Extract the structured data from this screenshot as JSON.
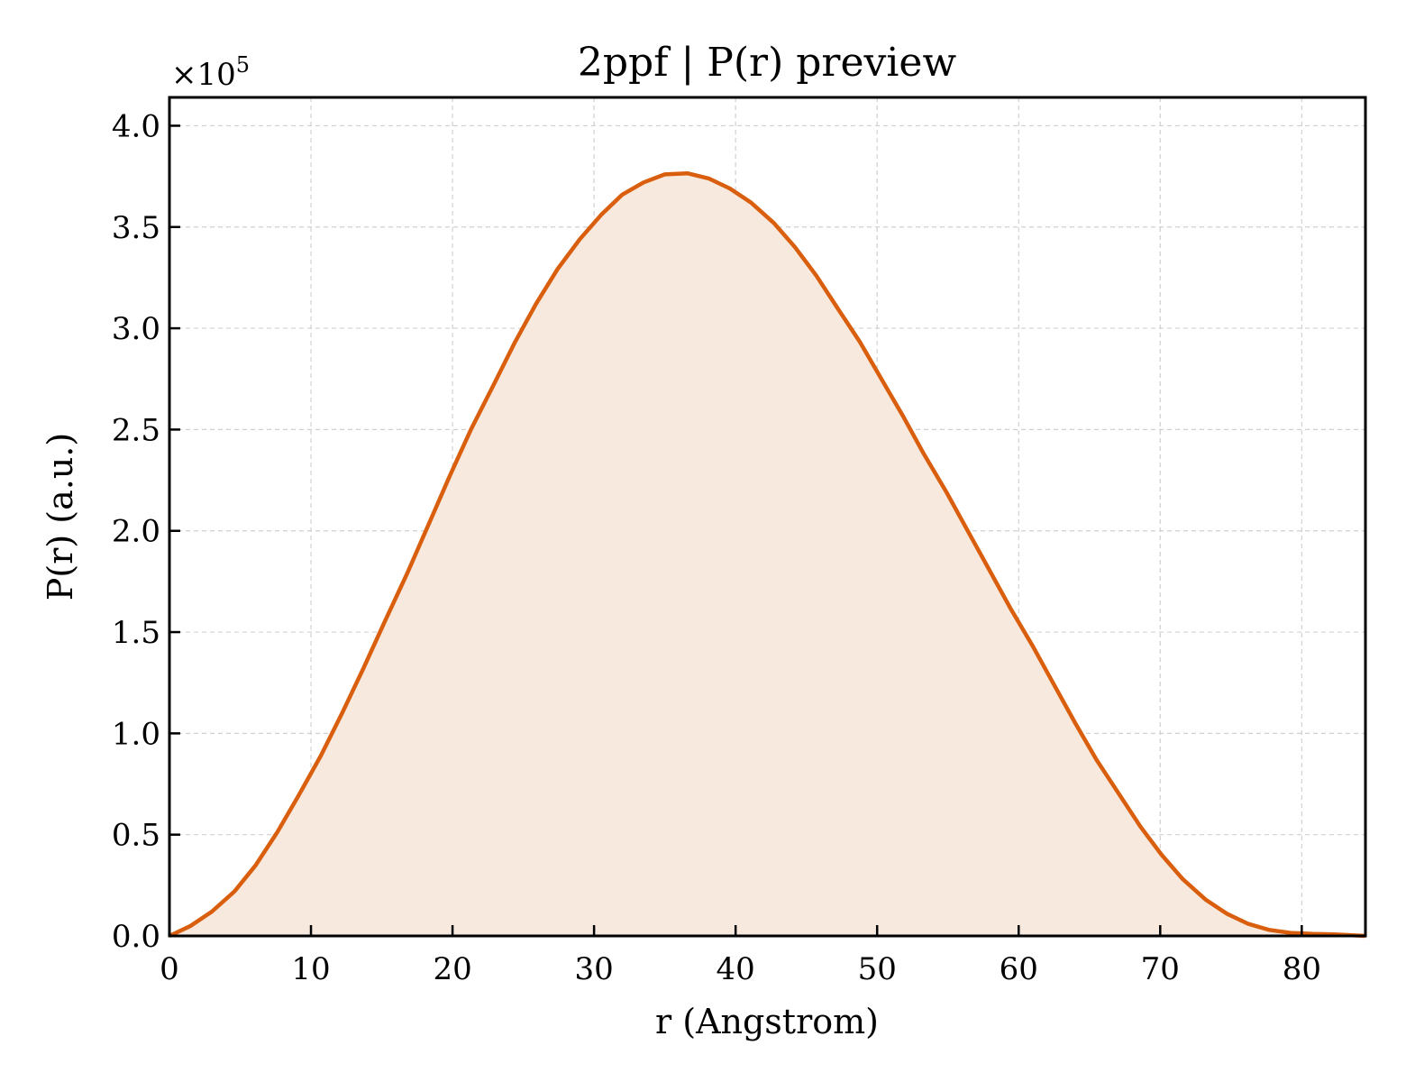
{
  "chart_data": {
    "type": "area",
    "title": "2ppf | P(r) preview",
    "xlabel": "r (Angstrom)",
    "ylabel": "P(r) (a.u.)",
    "y_scale_prefix": "×10",
    "y_scale_exponent": "5",
    "xlim": [
      0,
      84.5
    ],
    "ylim": [
      0,
      4.14
    ],
    "grid": true,
    "line_color": "#d95f0e",
    "fill_color": "#f8e9de",
    "x_ticks": [
      "0",
      "10",
      "20",
      "30",
      "40",
      "50",
      "60",
      "70",
      "80"
    ],
    "y_ticks": [
      "0.0",
      "0.5",
      "1.0",
      "1.5",
      "2.0",
      "2.5",
      "3.0",
      "3.5",
      "4.0"
    ],
    "series": [
      {
        "x": [
          0,
          1.5,
          3.0,
          4.6,
          6.1,
          7.6,
          9.1,
          10.7,
          12.2,
          13.7,
          15.2,
          16.8,
          18.3,
          19.8,
          21.3,
          22.9,
          24.4,
          25.9,
          27.4,
          29.0,
          30.5,
          32.0,
          33.5,
          35.0,
          36.6,
          38.1,
          39.6,
          41.1,
          42.7,
          44.2,
          45.7,
          47.2,
          48.8,
          50.3,
          51.8,
          53.3,
          54.9,
          56.4,
          57.9,
          59.4,
          61.0,
          62.5,
          64.0,
          65.5,
          67.1,
          68.6,
          70.1,
          71.6,
          73.2,
          74.7,
          76.2,
          77.7,
          79.2,
          80.8,
          82.3,
          84.5
        ],
        "y": [
          0.0,
          0.05,
          0.12,
          0.22,
          0.35,
          0.51,
          0.69,
          0.89,
          1.1,
          1.32,
          1.55,
          1.79,
          2.03,
          2.27,
          2.5,
          2.72,
          2.93,
          3.12,
          3.29,
          3.44,
          3.56,
          3.66,
          3.72,
          3.76,
          3.765,
          3.74,
          3.69,
          3.62,
          3.52,
          3.4,
          3.26,
          3.1,
          2.93,
          2.75,
          2.57,
          2.38,
          2.19,
          2.0,
          1.81,
          1.62,
          1.43,
          1.24,
          1.05,
          0.87,
          0.7,
          0.54,
          0.4,
          0.28,
          0.18,
          0.11,
          0.06,
          0.03,
          0.015,
          0.01,
          0.008,
          0.0
        ]
      }
    ]
  }
}
